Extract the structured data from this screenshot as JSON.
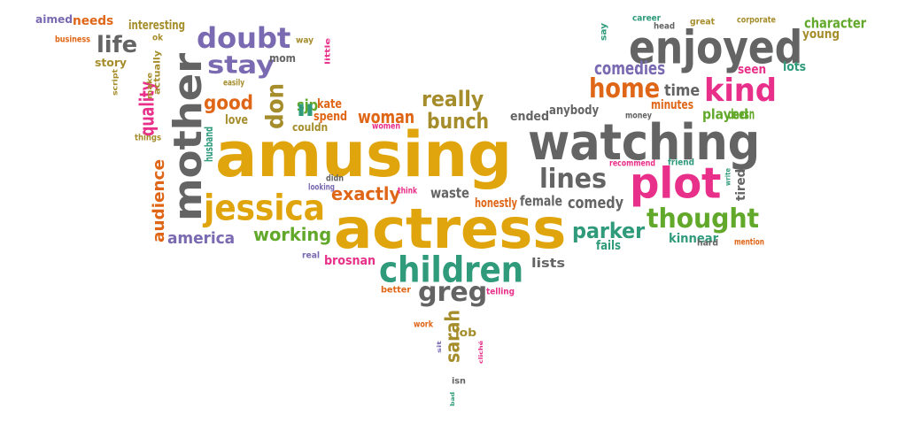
{
  "colors": {
    "gray": "#646464",
    "yellow": "#e0a50c",
    "purple": "#7a6ab1",
    "pink": "#e8308a",
    "green": "#62a82b",
    "orange": "#e06617",
    "teal": "#2f9b7b",
    "olive": "#a68d2c"
  },
  "words": [
    {
      "text": "amusing",
      "color": "yellow"
    },
    {
      "text": "actress",
      "color": "yellow"
    },
    {
      "text": "watching",
      "color": "gray"
    },
    {
      "text": "enjoyed",
      "color": "gray"
    },
    {
      "text": "plot",
      "color": "pink"
    },
    {
      "text": "mother",
      "color": "gray"
    },
    {
      "text": "children",
      "color": "teal"
    },
    {
      "text": "jessica",
      "color": "yellow"
    },
    {
      "text": "doubt",
      "color": "purple"
    },
    {
      "text": "kind",
      "color": "pink"
    },
    {
      "text": "home",
      "color": "orange"
    },
    {
      "text": "thought",
      "color": "green"
    },
    {
      "text": "stay",
      "color": "purple"
    },
    {
      "text": "greg",
      "color": "gray"
    },
    {
      "text": "lines",
      "color": "gray"
    },
    {
      "text": "life",
      "color": "gray"
    },
    {
      "text": "don",
      "color": "olive"
    },
    {
      "text": "quality",
      "color": "pink"
    },
    {
      "text": "really",
      "color": "olive"
    },
    {
      "text": "bunch",
      "color": "olive"
    },
    {
      "text": "good",
      "color": "orange"
    },
    {
      "text": "parker",
      "color": "teal"
    },
    {
      "text": "sarah",
      "color": "olive"
    },
    {
      "text": "audience",
      "color": "orange"
    },
    {
      "text": "comedies",
      "color": "purple"
    },
    {
      "text": "exactly",
      "color": "orange"
    },
    {
      "text": "working",
      "color": "green"
    },
    {
      "text": "america",
      "color": "purple"
    },
    {
      "text": "comedy",
      "color": "gray"
    },
    {
      "text": "woman",
      "color": "orange"
    },
    {
      "text": "time",
      "color": "gray"
    },
    {
      "text": "sjp",
      "color": "green"
    },
    {
      "text": "ll",
      "color": "teal"
    },
    {
      "text": "waste",
      "color": "gray"
    },
    {
      "text": "female",
      "color": "gray"
    },
    {
      "text": "character",
      "color": "green"
    },
    {
      "text": "played",
      "color": "green"
    },
    {
      "text": "doesn",
      "color": "green"
    },
    {
      "text": "lots",
      "color": "teal"
    },
    {
      "text": "seen",
      "color": "pink"
    },
    {
      "text": "young",
      "color": "olive"
    },
    {
      "text": "needs",
      "color": "orange"
    },
    {
      "text": "interesting",
      "color": "olive"
    },
    {
      "text": "aimed",
      "color": "purple"
    },
    {
      "text": "story",
      "color": "olive"
    },
    {
      "text": "ended",
      "color": "gray"
    },
    {
      "text": "anybody",
      "color": "gray"
    },
    {
      "text": "minutes",
      "color": "orange"
    },
    {
      "text": "kate",
      "color": "orange"
    },
    {
      "text": "spend",
      "color": "orange"
    },
    {
      "text": "love",
      "color": "olive"
    },
    {
      "text": "husband",
      "color": "teal"
    },
    {
      "text": "honestly",
      "color": "orange"
    },
    {
      "text": "kinnear",
      "color": "teal"
    },
    {
      "text": "fails",
      "color": "teal"
    },
    {
      "text": "lists",
      "color": "gray"
    },
    {
      "text": "brosnan",
      "color": "pink"
    },
    {
      "text": "tired",
      "color": "gray"
    },
    {
      "text": "mom",
      "color": "gray"
    },
    {
      "text": "couldn",
      "color": "olive"
    },
    {
      "text": "job",
      "color": "olive"
    },
    {
      "text": "actually",
      "color": "olive"
    },
    {
      "text": "say",
      "color": "teal"
    },
    {
      "text": "business",
      "color": "orange"
    },
    {
      "text": "career",
      "color": "teal"
    },
    {
      "text": "head",
      "color": "gray"
    },
    {
      "text": "great",
      "color": "olive"
    },
    {
      "text": "corporate",
      "color": "olive"
    },
    {
      "text": "way",
      "color": "olive"
    },
    {
      "text": "ok",
      "color": "olive"
    },
    {
      "text": "little",
      "color": "pink"
    },
    {
      "text": "easily",
      "color": "olive"
    },
    {
      "text": "script",
      "color": "olive"
    },
    {
      "text": "make",
      "color": "olive"
    },
    {
      "text": "things",
      "color": "olive"
    },
    {
      "text": "women",
      "color": "pink"
    },
    {
      "text": "recommend",
      "color": "pink"
    },
    {
      "text": "friend",
      "color": "teal"
    },
    {
      "text": "money",
      "color": "gray"
    },
    {
      "text": "looking",
      "color": "purple"
    },
    {
      "text": "didn",
      "color": "gray"
    },
    {
      "text": "think",
      "color": "pink"
    },
    {
      "text": "write",
      "color": "teal"
    },
    {
      "text": "hard",
      "color": "gray"
    },
    {
      "text": "mention",
      "color": "orange"
    },
    {
      "text": "real",
      "color": "purple"
    },
    {
      "text": "better",
      "color": "orange"
    },
    {
      "text": "telling",
      "color": "pink"
    },
    {
      "text": "work",
      "color": "orange"
    },
    {
      "text": "sit",
      "color": "purple"
    },
    {
      "text": "cliché",
      "color": "pink"
    },
    {
      "text": "isn",
      "color": "gray"
    },
    {
      "text": "bad",
      "color": "teal"
    }
  ]
}
